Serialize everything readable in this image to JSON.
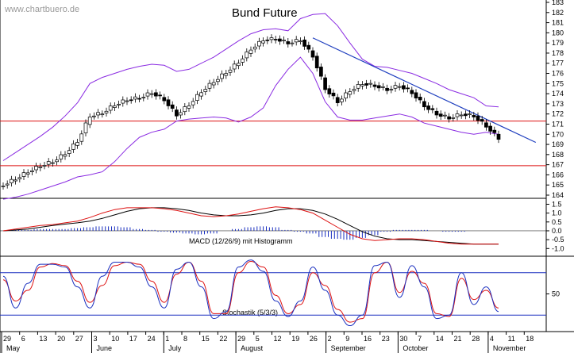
{
  "page": {
    "title": "Bund Future",
    "watermark": "www.chartbuero.de"
  },
  "chart_data": [
    {
      "type": "candlestick",
      "title": "Bund Future",
      "ylim": [
        164,
        183
      ],
      "yticks": [
        164,
        165,
        166,
        167,
        168,
        169,
        170,
        171,
        172,
        173,
        174,
        175,
        176,
        177,
        178,
        179,
        180,
        181,
        182,
        183
      ],
      "series": [
        {
          "kind": "close",
          "values": [
            165.0,
            165.6,
            166.3,
            166.9,
            167.3,
            168.1,
            169.3,
            171.8,
            172.1,
            172.9,
            173.4,
            173.6,
            174.1,
            173.4,
            171.9,
            172.9,
            174.2,
            175.2,
            176.1,
            177.1,
            178.4,
            179.3,
            179.4,
            179.0,
            179.3,
            177.7,
            174.5,
            173.2,
            174.3,
            175.0,
            174.8,
            174.4,
            174.8,
            174.1,
            172.8,
            172.0,
            171.6,
            172.0,
            171.8,
            170.8,
            169.6
          ]
        },
        {
          "kind": "upper_band",
          "values": [
            167.4,
            168.2,
            169.0,
            169.8,
            170.7,
            171.8,
            173.1,
            175.0,
            175.6,
            176.0,
            176.4,
            176.7,
            176.9,
            176.8,
            176.2,
            176.4,
            177.0,
            177.6,
            178.4,
            179.2,
            179.9,
            180.3,
            180.4,
            180.2,
            181.4,
            181.8,
            181.9,
            180.7,
            179.0,
            177.4,
            176.7,
            176.6,
            176.3,
            176.0,
            175.5,
            175.0,
            174.4,
            174.0,
            173.6,
            172.8,
            172.7
          ]
        },
        {
          "kind": "lower_band",
          "values": [
            163.6,
            163.8,
            164.1,
            164.5,
            164.9,
            165.3,
            165.8,
            166.0,
            166.3,
            167.3,
            168.6,
            169.7,
            170.2,
            170.5,
            171.3,
            171.5,
            171.6,
            171.7,
            171.6,
            171.2,
            171.7,
            172.6,
            174.8,
            176.4,
            177.6,
            176.0,
            173.2,
            171.7,
            171.4,
            171.4,
            171.6,
            171.8,
            172.0,
            171.7,
            171.1,
            170.8,
            170.5,
            170.2,
            170.0,
            170.2,
            170.0
          ]
        },
        {
          "kind": "resistance_line",
          "values": [
            171.3
          ]
        },
        {
          "kind": "support_line",
          "values": [
            166.9
          ]
        },
        {
          "kind": "trendline",
          "points": [
            {
              "t": 25,
              "v": 179.5
            },
            {
              "t": 43,
              "v": 169.2
            }
          ]
        }
      ]
    },
    {
      "type": "line",
      "label": "MACD (12/26/9) mit Histogramm",
      "ylim": [
        -1.3,
        1.7
      ],
      "yticks": [
        1.5,
        1.0,
        0.5,
        0.0,
        -0.5,
        -1.0
      ],
      "series": [
        {
          "kind": "macd",
          "values": [
            0.0,
            0.1,
            0.2,
            0.3,
            0.35,
            0.45,
            0.55,
            0.75,
            1.0,
            1.2,
            1.3,
            1.3,
            1.3,
            1.25,
            1.15,
            1.0,
            0.85,
            0.8,
            0.85,
            0.95,
            1.1,
            1.25,
            1.35,
            1.3,
            1.2,
            1.0,
            0.6,
            0.2,
            -0.2,
            -0.45,
            -0.55,
            -0.5,
            -0.45,
            -0.45,
            -0.5,
            -0.6,
            -0.7,
            -0.75,
            -0.75,
            -0.75,
            -0.75
          ]
        },
        {
          "kind": "signal",
          "values": [
            0.0,
            0.05,
            0.1,
            0.2,
            0.3,
            0.38,
            0.45,
            0.55,
            0.7,
            0.9,
            1.1,
            1.25,
            1.3,
            1.3,
            1.25,
            1.15,
            1.0,
            0.9,
            0.85,
            0.85,
            0.9,
            1.0,
            1.15,
            1.25,
            1.25,
            1.15,
            0.95,
            0.65,
            0.3,
            -0.05,
            -0.3,
            -0.45,
            -0.5,
            -0.5,
            -0.55,
            -0.6,
            -0.65,
            -0.7,
            -0.75,
            -0.75,
            -0.75
          ]
        },
        {
          "kind": "histogram",
          "values": [
            0.0,
            0.05,
            0.05,
            0.1,
            0.1,
            0.1,
            0.15,
            0.2,
            0.25,
            0.25,
            0.2,
            0.1,
            0.05,
            -0.05,
            -0.1,
            -0.15,
            -0.2,
            -0.15,
            0.0,
            0.1,
            0.2,
            0.25,
            0.2,
            0.05,
            -0.05,
            -0.15,
            -0.35,
            -0.45,
            -0.5,
            -0.4,
            -0.25,
            -0.05,
            0.05,
            0.05,
            0.05,
            0.0,
            -0.05,
            -0.05,
            0.0,
            0.0,
            0.0
          ]
        }
      ]
    },
    {
      "type": "line",
      "label": "Stochastik (5/3/3)",
      "ylim": [
        0,
        100
      ],
      "yticks": [
        50
      ],
      "levels": [
        80,
        20
      ],
      "series": [
        {
          "kind": "k",
          "values": [
            75,
            30,
            65,
            92,
            92,
            88,
            60,
            30,
            75,
            95,
            95,
            88,
            60,
            30,
            85,
            95,
            60,
            15,
            25,
            88,
            98,
            82,
            40,
            18,
            40,
            88,
            55,
            20,
            5,
            20,
            90,
            95,
            45,
            90,
            60,
            15,
            20,
            80,
            35,
            60,
            25
          ]
        },
        {
          "kind": "d",
          "values": [
            70,
            40,
            55,
            88,
            93,
            90,
            68,
            38,
            62,
            90,
            95,
            92,
            68,
            38,
            78,
            95,
            68,
            22,
            22,
            80,
            96,
            88,
            48,
            22,
            35,
            80,
            62,
            28,
            10,
            15,
            80,
            95,
            52,
            82,
            65,
            22,
            18,
            72,
            42,
            55,
            30
          ]
        }
      ]
    }
  ],
  "x_axis": {
    "day_labels": [
      "29",
      "6",
      "13",
      "20",
      "27",
      "3",
      "10",
      "17",
      "24",
      "1",
      "8",
      "15",
      "22",
      "29",
      "5",
      "12",
      "19",
      "26",
      "2",
      "9",
      "16",
      "23",
      "30",
      "7",
      "14",
      "21",
      "28",
      "4",
      "11",
      "18"
    ],
    "month_labels": [
      "May",
      "June",
      "July",
      "August",
      "September",
      "October",
      "November"
    ]
  }
}
